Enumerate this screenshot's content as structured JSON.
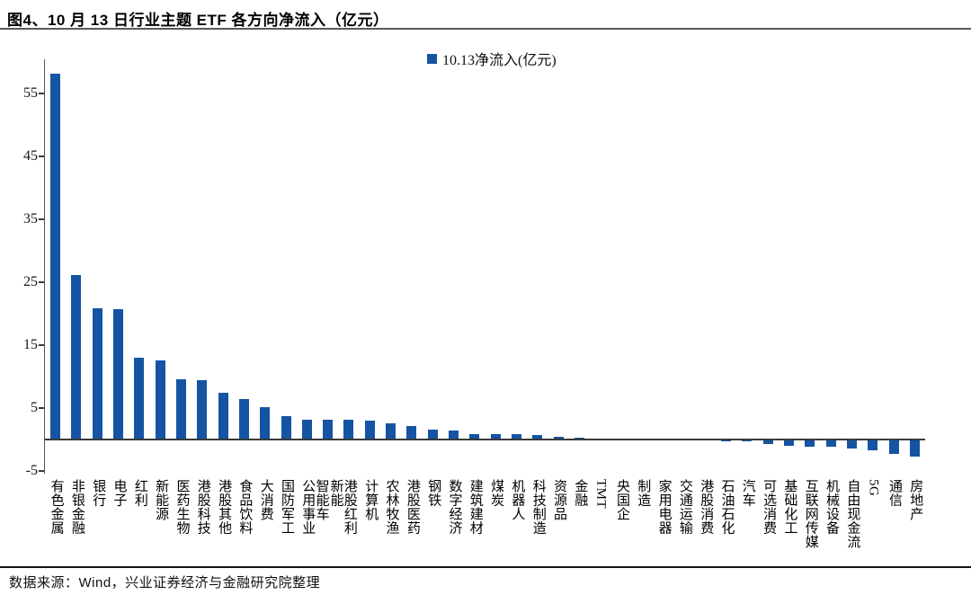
{
  "page": {
    "title": "图4、10 月 13 日行业主题 ETF 各方向净流入（亿元）",
    "footer": "数据来源：Wind，兴业证券经济与金融研究院整理"
  },
  "chart_data": {
    "type": "bar",
    "title": "10 月 13 日行业主题 ETF 各方向净流入（亿元）",
    "legend_label": "10.13净流入(亿元)",
    "legend_position": "top-center",
    "grid": false,
    "xlabel": "",
    "ylabel": "",
    "ylim": [
      -5,
      60
    ],
    "yticks": [
      -5,
      5,
      15,
      25,
      35,
      45,
      55
    ],
    "bar_color": "#1554A2",
    "axis_color": "#3a3a3a",
    "categories": [
      "有色金属",
      "非银金融",
      "银行",
      "电子",
      "红利",
      "新能源",
      "医药生物",
      "港股科技",
      "港股其他",
      "食品饮料",
      "大消费",
      "国防军工",
      "公用事业",
      "新能\n智能车",
      "港股红利",
      "计算机",
      "农林牧渔",
      "港股医药",
      "钢铁",
      "数字经济",
      "建筑建材",
      "煤炭",
      "机器人",
      "科技制造",
      "资源品",
      "金融",
      "TMT",
      "央国企",
      "制造",
      "家用电器",
      "交通运输",
      "港股消费",
      "石油石化",
      "汽车",
      "可选消费",
      "基础化工",
      "互联网传媒",
      "机械设备",
      "自由现金流",
      "5G",
      "通信",
      "房地产"
    ],
    "values": [
      58.1,
      26.2,
      20.8,
      20.7,
      13.0,
      12.6,
      9.6,
      9.4,
      7.4,
      6.5,
      5.2,
      3.7,
      3.2,
      3.2,
      3.1,
      3.0,
      2.6,
      2.1,
      1.6,
      1.4,
      0.9,
      0.8,
      0.8,
      0.7,
      0.4,
      0.3,
      0.2,
      0.2,
      0.1,
      0.1,
      0.1,
      0.0,
      -0.1,
      -0.1,
      -0.6,
      -0.8,
      -1.0,
      -1.0,
      -1.3,
      -1.5,
      -2.2,
      -2.6
    ]
  }
}
